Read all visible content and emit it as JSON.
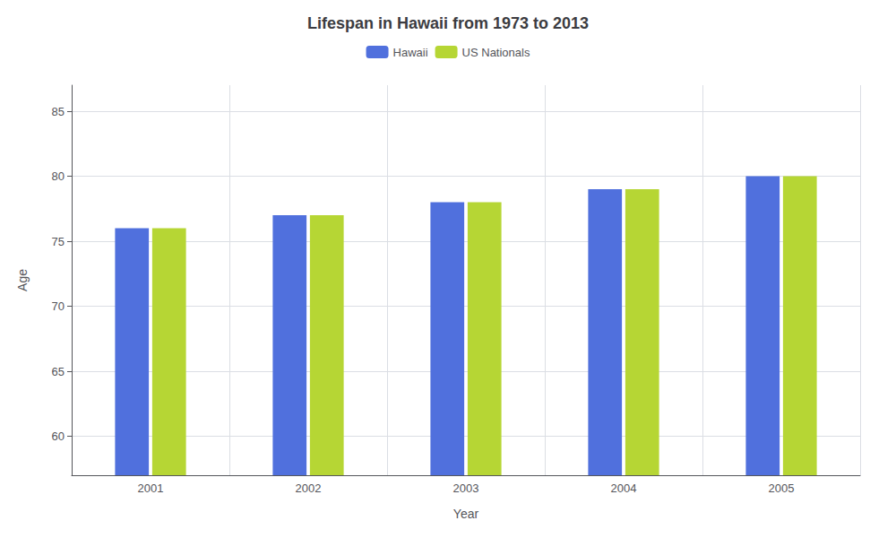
{
  "chart_data": {
    "type": "bar",
    "title": "Lifespan in Hawaii from 1973 to 2013",
    "xlabel": "Year",
    "ylabel": "Age",
    "categories": [
      "2001",
      "2002",
      "2003",
      "2004",
      "2005"
    ],
    "series": [
      {
        "name": "Hawaii",
        "values": [
          76,
          77,
          78,
          79,
          80
        ]
      },
      {
        "name": "US Nationals",
        "values": [
          76,
          77,
          78,
          79,
          80
        ]
      }
    ],
    "ylim": [
      57,
      87
    ],
    "yticks": [
      60,
      65,
      70,
      75,
      80,
      85
    ],
    "grid": true,
    "legend": "top"
  }
}
